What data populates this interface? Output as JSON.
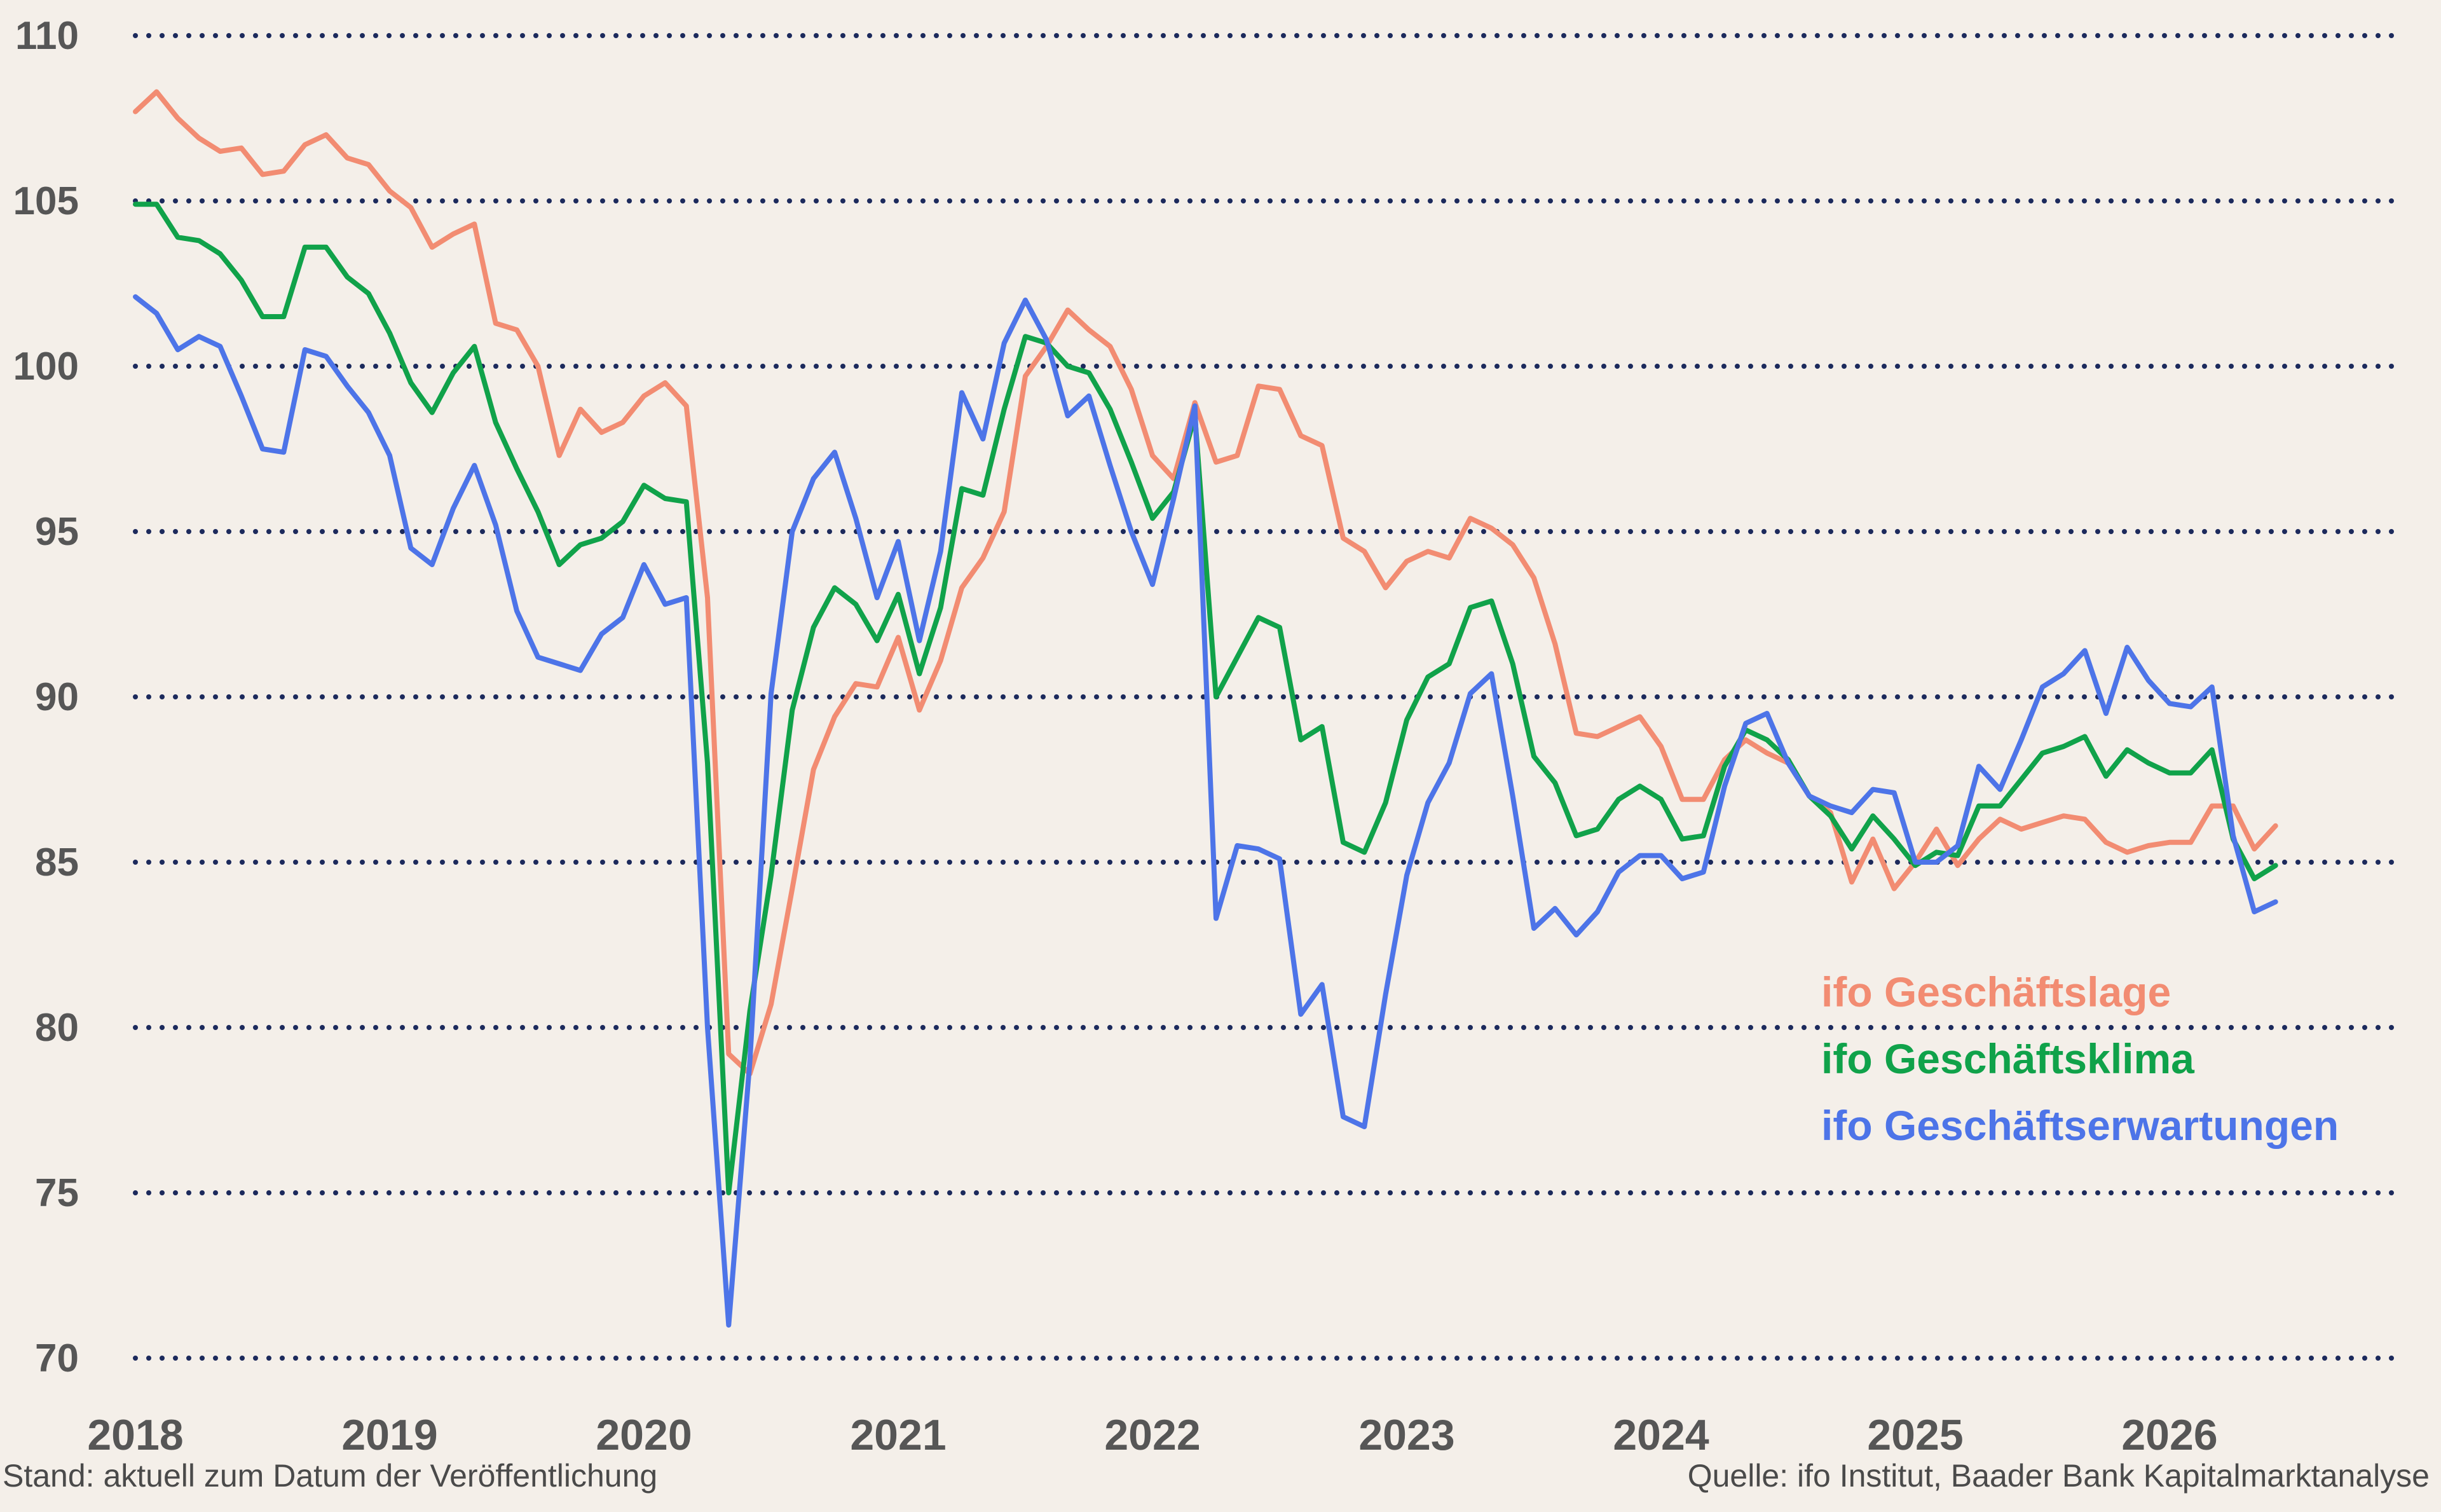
{
  "chart_data": {
    "type": "line",
    "x_start": "2018-01",
    "yticks": [
      "110",
      "105",
      "100",
      "95",
      "90",
      "85",
      "80",
      "75",
      "70"
    ],
    "xticks": [
      "2018",
      "2019",
      "2020",
      "2021",
      "2022",
      "2023",
      "2024",
      "2025",
      "2026"
    ],
    "ylim": [
      70,
      110
    ],
    "grid": true,
    "legend_position": "right",
    "series": [
      {
        "name": "ifo Geschäftslage",
        "color": "#f28c72",
        "values": [
          107.7,
          108.3,
          107.5,
          106.9,
          106.5,
          106.6,
          105.8,
          105.9,
          106.7,
          107.0,
          106.3,
          106.1,
          105.3,
          104.8,
          103.6,
          104.0,
          104.3,
          101.3,
          101.1,
          100.0,
          97.3,
          98.7,
          98.0,
          98.3,
          99.1,
          99.5,
          98.8,
          93.0,
          79.2,
          78.6,
          80.7,
          84.2,
          87.8,
          89.4,
          90.4,
          90.3,
          91.8,
          89.6,
          91.1,
          93.3,
          94.2,
          95.6,
          99.7,
          100.6,
          101.7,
          101.1,
          100.6,
          99.3,
          97.3,
          96.6,
          98.9,
          97.1,
          97.3,
          99.4,
          99.3,
          97.9,
          97.6,
          94.8,
          94.4,
          93.3,
          94.1,
          94.4,
          94.2,
          95.4,
          95.1,
          94.6,
          93.6,
          91.6,
          88.9,
          88.8,
          89.1,
          89.4,
          88.5,
          86.9,
          86.9,
          88.1,
          88.7,
          88.3,
          88.0,
          87.0,
          86.5,
          84.4,
          85.7,
          84.2,
          85.0,
          86.0,
          84.9,
          85.7,
          86.3,
          86.0,
          86.2,
          86.4,
          86.3,
          85.6,
          85.3,
          85.5,
          85.6,
          85.6,
          86.7,
          86.7,
          85.4,
          86.1
        ]
      },
      {
        "name": "ifo Geschäftsklima",
        "color": "#10a24a",
        "values": [
          104.9,
          104.9,
          103.9,
          103.8,
          103.4,
          102.6,
          101.5,
          101.5,
          103.6,
          103.6,
          102.7,
          102.2,
          101.0,
          99.5,
          98.6,
          99.8,
          100.6,
          98.3,
          96.9,
          95.6,
          94.0,
          94.6,
          94.8,
          95.3,
          96.4,
          96.0,
          95.9,
          88.0,
          75.0,
          80.5,
          84.6,
          89.6,
          92.1,
          93.3,
          92.8,
          91.7,
          93.1,
          90.7,
          92.7,
          96.3,
          96.1,
          98.7,
          100.9,
          100.7,
          100.0,
          99.8,
          98.7,
          97.1,
          95.4,
          96.2,
          98.5,
          90.0,
          91.2,
          92.4,
          92.1,
          88.7,
          89.1,
          85.6,
          85.3,
          86.8,
          89.3,
          90.6,
          91.0,
          92.7,
          92.9,
          91.0,
          88.2,
          87.4,
          85.8,
          86.0,
          86.9,
          87.3,
          86.9,
          85.7,
          85.8,
          87.9,
          89.0,
          88.7,
          88.1,
          87.0,
          86.4,
          85.4,
          86.4,
          85.7,
          84.9,
          85.3,
          85.2,
          86.7,
          86.7,
          87.5,
          88.3,
          88.5,
          88.8,
          87.6,
          88.4,
          88.0,
          87.7,
          87.7,
          88.4,
          85.7,
          84.5,
          84.9
        ]
      },
      {
        "name": "ifo Geschäftserwartungen",
        "color": "#4d74e8",
        "values": [
          102.1,
          101.6,
          100.5,
          100.9,
          100.6,
          99.1,
          97.5,
          97.4,
          100.5,
          100.3,
          99.4,
          98.6,
          97.3,
          94.5,
          94.0,
          95.7,
          97.0,
          95.2,
          92.6,
          91.2,
          91.0,
          90.8,
          91.9,
          92.4,
          94.0,
          92.8,
          93.0,
          80.0,
          71.0,
          79.0,
          90.1,
          95.0,
          96.6,
          97.4,
          95.4,
          93.0,
          94.7,
          91.7,
          94.4,
          99.2,
          97.8,
          100.7,
          102.0,
          100.8,
          98.5,
          99.1,
          97.0,
          95.0,
          93.4,
          96.0,
          98.8,
          83.3,
          85.5,
          85.4,
          85.1,
          80.4,
          81.3,
          77.3,
          77.0,
          81.0,
          84.6,
          86.8,
          88.0,
          90.1,
          90.7,
          87.0,
          83.0,
          83.6,
          82.8,
          83.5,
          84.7,
          85.2,
          85.2,
          84.5,
          84.7,
          87.3,
          89.2,
          89.5,
          88.0,
          87.0,
          86.7,
          86.5,
          87.2,
          87.1,
          85.0,
          85.0,
          85.5,
          87.9,
          87.2,
          88.7,
          90.3,
          90.7,
          91.4,
          89.5,
          91.5,
          90.5,
          89.8,
          89.7,
          90.3,
          85.8,
          83.5,
          83.8
        ]
      }
    ],
    "footer_left": "Stand: aktuell zum Datum der Veröffentlichung",
    "footer_right": "Quelle: ifo Institut, Baader Bank Kapitalmarktanalyse"
  }
}
